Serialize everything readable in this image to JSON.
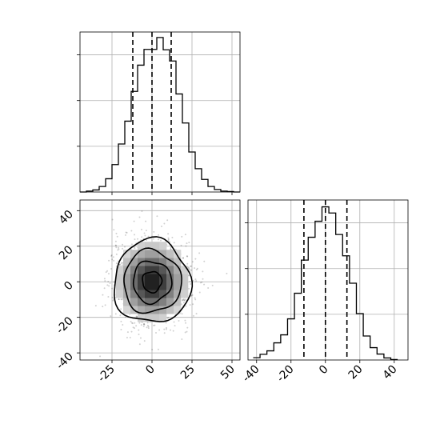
{
  "chart_data": [
    {
      "panel": "top-left",
      "type": "histogram",
      "variable": "x",
      "xlim": [
        -45,
        55
      ],
      "ylim": [
        0,
        0.07
      ],
      "x_ticks": [
        -25,
        0,
        25,
        50
      ],
      "x_tick_labels_shown": false,
      "y_tick_labels_shown": false,
      "bin_edges": [
        -45,
        -41,
        -37,
        -33,
        -29,
        -25,
        -21,
        -17,
        -13,
        -9,
        -5,
        -1,
        3,
        7,
        11,
        15,
        19,
        23,
        27,
        31,
        35,
        39,
        43,
        47,
        51,
        55
      ],
      "values": [
        0.0,
        0.0004,
        0.0009,
        0.0024,
        0.0058,
        0.012,
        0.021,
        0.031,
        0.044,
        0.0555,
        0.0624,
        0.0624,
        0.0676,
        0.0622,
        0.0573,
        0.0429,
        0.0302,
        0.0175,
        0.0102,
        0.0055,
        0.0024,
        0.0011,
        0.0004,
        0.0002,
        0.0
      ],
      "quantile_lines": [
        -12,
        0,
        12
      ],
      "grid": true
    },
    {
      "panel": "bottom-left",
      "type": "scatter-density-contour",
      "x_variable": "x",
      "y_variable": "y",
      "xlim": [
        -45,
        55
      ],
      "ylim": [
        -44,
        46
      ],
      "x_ticks": [
        "-25",
        "0",
        "25",
        "50"
      ],
      "y_ticks": [
        "-40",
        "-20",
        "0",
        "20",
        "40"
      ],
      "center": [
        0,
        0
      ],
      "sigma": [
        12,
        12
      ],
      "contour_levels_sigma": [
        0.5,
        1.0,
        1.5,
        2.0
      ],
      "grid": true
    },
    {
      "panel": "bottom-right",
      "type": "histogram",
      "variable": "y",
      "xlim": [
        -45,
        48
      ],
      "ylim": [
        0,
        0.07
      ],
      "x_ticks": [
        "-40",
        "-20",
        "0",
        "20",
        "40"
      ],
      "y_tick_labels_shown": false,
      "bin_edges": [
        -42,
        -38,
        -34,
        -30,
        -26,
        -22,
        -18,
        -14,
        -10,
        -6,
        -2,
        2,
        6,
        10,
        14,
        18,
        22,
        26,
        30,
        34,
        38,
        42
      ],
      "values": [
        0.001,
        0.0025,
        0.004,
        0.0075,
        0.011,
        0.018,
        0.0292,
        0.0437,
        0.0537,
        0.0607,
        0.067,
        0.0643,
        0.0549,
        0.0456,
        0.0336,
        0.0203,
        0.0105,
        0.0054,
        0.0026,
        0.0009,
        0.0002
      ],
      "quantile_lines": [
        -12.5,
        0,
        12.5
      ],
      "grid": true
    }
  ]
}
